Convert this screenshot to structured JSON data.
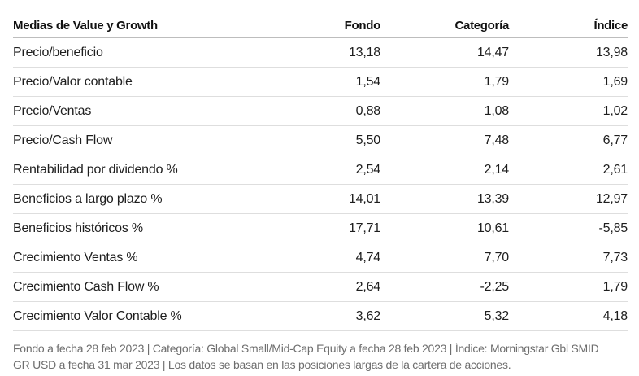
{
  "table": {
    "headers": {
      "label": "Medias de Value y Growth",
      "fund": "Fondo",
      "category": "Categoría",
      "index": "Índice"
    },
    "rows": [
      {
        "label": "Precio/beneficio",
        "fund": "13,18",
        "category": "14,47",
        "index": "13,98"
      },
      {
        "label": "Precio/Valor contable",
        "fund": "1,54",
        "category": "1,79",
        "index": "1,69"
      },
      {
        "label": "Precio/Ventas",
        "fund": "0,88",
        "category": "1,08",
        "index": "1,02"
      },
      {
        "label": "Precio/Cash Flow",
        "fund": "5,50",
        "category": "7,48",
        "index": "6,77"
      },
      {
        "label": "Rentabilidad por dividendo %",
        "fund": "2,54",
        "category": "2,14",
        "index": "2,61"
      },
      {
        "label": "Beneficios a largo plazo %",
        "fund": "14,01",
        "category": "13,39",
        "index": "12,97"
      },
      {
        "label": "Beneficios históricos %",
        "fund": "17,71",
        "category": "10,61",
        "index": "-5,85"
      },
      {
        "label": "Crecimiento Ventas %",
        "fund": "4,74",
        "category": "7,70",
        "index": "7,73"
      },
      {
        "label": "Crecimiento Cash Flow %",
        "fund": "2,64",
        "category": "-2,25",
        "index": "1,79"
      },
      {
        "label": "Crecimiento Valor Contable %",
        "fund": "3,62",
        "category": "5,32",
        "index": "4,18"
      }
    ]
  },
  "footnote": {
    "line1": "Fondo a fecha 28 feb 2023 | Categoría: Global Small/Mid-Cap Equity a fecha 28 feb 2023 | Índice: Morningstar Gbl SMID",
    "line2": "GR USD a fecha 31 mar 2023 | Los datos se basan en las posiciones largas de la cartera de acciones."
  }
}
